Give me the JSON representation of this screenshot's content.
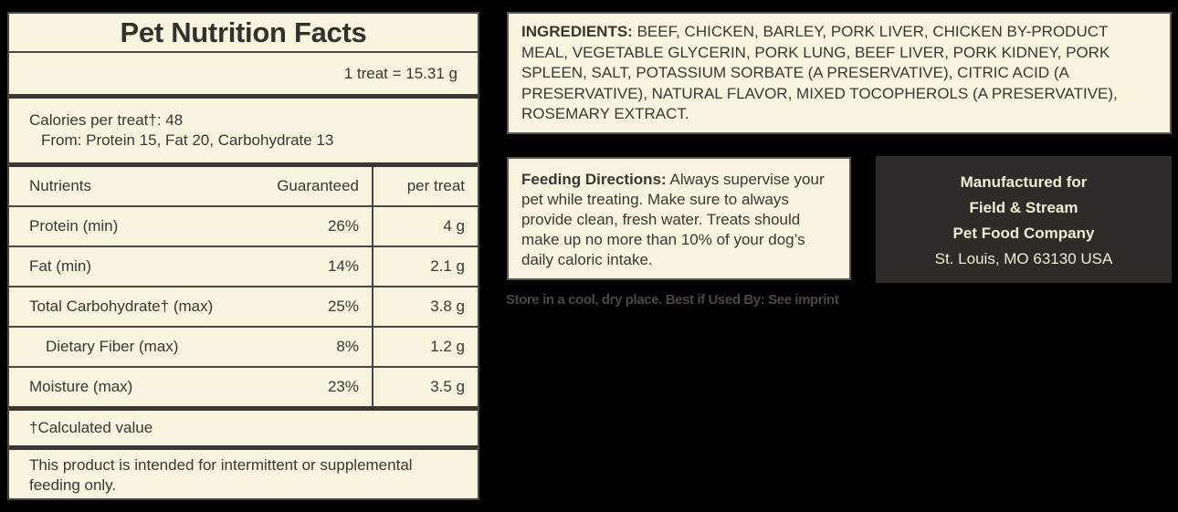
{
  "nutrition": {
    "title": "Pet Nutrition Facts",
    "serving_size": "1 treat = 15.31 g",
    "calories": "Calories per treat†: 48",
    "calories_from": "From: Protein 15, Fat 20, Carbohydrate 13",
    "headers": {
      "nutrient": "Nutrients",
      "guaranteed": "Guaranteed",
      "per_treat": "per treat"
    },
    "rows": [
      {
        "name": "Protein (min)",
        "guaranteed": "26%",
        "per_treat": "4 g"
      },
      {
        "name": "Fat (min)",
        "guaranteed": "14%",
        "per_treat": "2.1 g"
      },
      {
        "name": "Total Carbohydrate† (max)",
        "guaranteed": "25%",
        "per_treat": "3.8 g"
      },
      {
        "name": "Dietary Fiber (max)",
        "guaranteed": "8%",
        "per_treat": "1.2 g"
      },
      {
        "name": "Moisture (max)",
        "guaranteed": "23%",
        "per_treat": "3.5 g"
      }
    ],
    "footnote": "†Calculated value",
    "note": "This product is intended for intermittent or supplemental feeding only."
  },
  "ingredients": {
    "label": "INGREDIENTS:",
    "text": "BEEF, CHICKEN, BARLEY, PORK LIVER, CHICKEN BY-PRODUCT MEAL, VEGETABLE GLYCERIN, PORK LUNG, BEEF LIVER, PORK KIDNEY, PORK SPLEEN, SALT, POTASSIUM SORBATE (A PRESERVATIVE), CITRIC ACID (A PRESERVATIVE), NATURAL FLAVOR, MIXED TOCOPHEROLS (A PRESERVATIVE), ROSEMARY EXTRACT."
  },
  "feeding": {
    "label": "Feeding Directions:",
    "text": "Always supervise your pet while treating. Make sure to always provide clean, fresh water. Treats should make up no more than 10% of your dog’s daily caloric intake."
  },
  "manufacturer": {
    "line1": "Manufactured for",
    "line2": "Field & Stream",
    "line3": "Pet Food Company",
    "line4": "St. Louis, MO 63130 USA"
  },
  "storage": "Store in a cool, dry place. Best if Used By: See imprint",
  "colors": {
    "panel_bg": "#f8f3df",
    "rule": "#3a3733",
    "dark_box": "#2f2b28",
    "dark_text": "#f1ebd4"
  }
}
